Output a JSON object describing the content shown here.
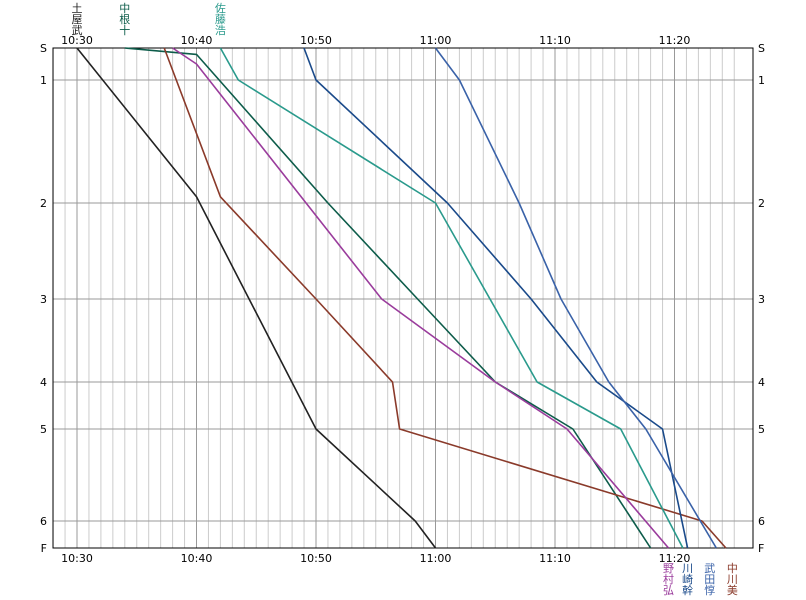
{
  "chart_data": {
    "type": "line",
    "title": "",
    "xlabel": "",
    "ylabel": "",
    "grid": true,
    "x_unit": "minutes past 10:30",
    "xlim": [
      -2,
      55.5
    ],
    "time_ticks": [
      "10:30",
      "10:40",
      "10:50",
      "11:00",
      "11:10",
      "11:20"
    ],
    "time_tick_values": [
      0,
      10,
      20,
      30,
      40,
      50
    ],
    "stations": [
      {
        "label": "S",
        "km": 0
      },
      {
        "label": "1",
        "km": 1
      },
      {
        "label": "2",
        "km": 2
      },
      {
        "label": "3",
        "km": 3
      },
      {
        "label": "4",
        "km": 4
      },
      {
        "label": "5",
        "km": 5
      },
      {
        "label": "6",
        "km": 6
      },
      {
        "label": "F",
        "km": 6.3
      }
    ],
    "series": [
      {
        "name": "土屋武",
        "color": "#222222",
        "label_pos": "top",
        "points": [
          [
            0,
            0
          ],
          [
            10,
            1.95
          ],
          [
            20,
            5
          ],
          [
            28.3,
            6
          ],
          [
            30,
            6.3
          ]
        ]
      },
      {
        "name": "中根十",
        "color": "#0d5c4a",
        "label_pos": "top",
        "points": [
          [
            4,
            0
          ],
          [
            10,
            0.2
          ],
          [
            21,
            2
          ],
          [
            28.5,
            3
          ],
          [
            35,
            4
          ],
          [
            41.5,
            5
          ],
          [
            48,
            6.3
          ]
        ]
      },
      {
        "name": "中川美",
        "color": "#8a3a2a",
        "label_pos": "bottom",
        "points": [
          [
            7.3,
            0
          ],
          [
            12,
            1.95
          ],
          [
            20,
            3
          ],
          [
            26.4,
            4
          ],
          [
            27,
            5
          ],
          [
            52.3,
            6
          ],
          [
            54.3,
            6.3
          ]
        ]
      },
      {
        "name": "野村弘",
        "color": "#9a3c9c",
        "label_pos": "bottom",
        "points": [
          [
            8,
            0
          ],
          [
            10,
            0.5
          ],
          [
            25.5,
            3
          ],
          [
            35,
            4
          ],
          [
            41,
            5
          ],
          [
            49.5,
            6.3
          ]
        ]
      },
      {
        "name": "佐藤浩",
        "color": "#2a9a8c",
        "label_pos": "top",
        "points": [
          [
            12,
            0
          ],
          [
            13.5,
            1
          ],
          [
            30,
            2
          ],
          [
            38.5,
            4
          ],
          [
            45.5,
            5
          ],
          [
            50.7,
            6.3
          ]
        ]
      },
      {
        "name": "川崎幹",
        "color": "#1a4a8a",
        "label_pos": "bottom",
        "points": [
          [
            19,
            0
          ],
          [
            20,
            1
          ],
          [
            31,
            2
          ],
          [
            38,
            3
          ],
          [
            43.5,
            4
          ],
          [
            49,
            5
          ],
          [
            51.1,
            6.3
          ]
        ]
      },
      {
        "name": "武田惇",
        "color": "#3a62a8",
        "label_pos": "bottom",
        "points": [
          [
            30,
            0
          ],
          [
            32,
            1
          ],
          [
            37,
            2
          ],
          [
            40.5,
            3
          ],
          [
            44.5,
            4
          ],
          [
            47.6,
            5
          ],
          [
            53.5,
            6.3
          ]
        ]
      }
    ]
  }
}
